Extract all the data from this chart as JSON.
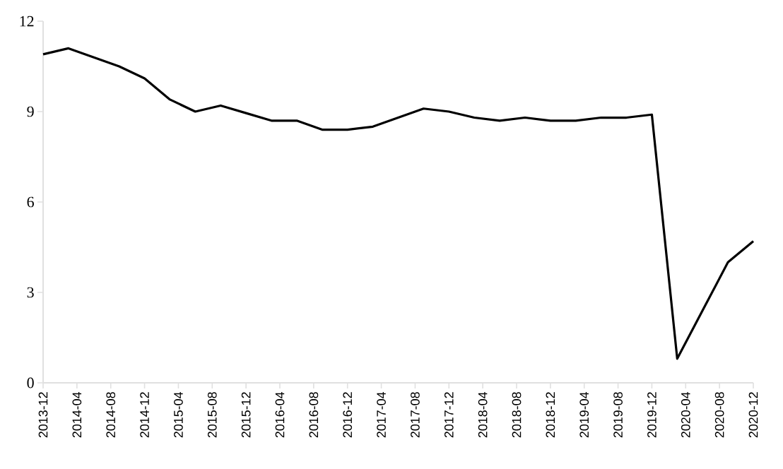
{
  "chart_data": {
    "type": "line",
    "x": [
      "2013-12",
      "2014-03",
      "2014-06",
      "2014-09",
      "2014-12",
      "2015-03",
      "2015-06",
      "2015-09",
      "2015-12",
      "2016-03",
      "2016-06",
      "2016-09",
      "2016-12",
      "2017-03",
      "2017-06",
      "2017-09",
      "2017-12",
      "2018-03",
      "2018-06",
      "2018-09",
      "2018-12",
      "2019-03",
      "2019-06",
      "2019-09",
      "2019-12",
      "2020-03",
      "2020-06",
      "2020-09",
      "2020-12"
    ],
    "series": [
      {
        "color": "#000000",
        "values": [
          10.9,
          11.1,
          10.8,
          10.5,
          10.1,
          9.4,
          9.0,
          9.2,
          8.95,
          8.7,
          8.7,
          8.4,
          8.4,
          8.5,
          8.8,
          9.1,
          9.0,
          8.8,
          8.7,
          8.8,
          8.7,
          8.7,
          8.8,
          8.8,
          8.9,
          0.8,
          2.4,
          4.0,
          4.7
        ]
      }
    ],
    "xlim": [
      "2013-12",
      "2020-12"
    ],
    "xticks": [
      "2013-12",
      "2014-04",
      "2014-08",
      "2014-12",
      "2015-04",
      "2015-08",
      "2015-12",
      "2016-04",
      "2016-08",
      "2016-12",
      "2017-04",
      "2017-08",
      "2017-12",
      "2018-04",
      "2018-08",
      "2018-12",
      "2019-04",
      "2019-08",
      "2019-12",
      "2020-04",
      "2020-08",
      "2020-12"
    ],
    "ylim": [
      0,
      12
    ],
    "yticks": [
      0,
      3,
      6,
      9,
      12
    ],
    "grid": false,
    "legend": false,
    "marker": "none",
    "line_style": "solid"
  }
}
